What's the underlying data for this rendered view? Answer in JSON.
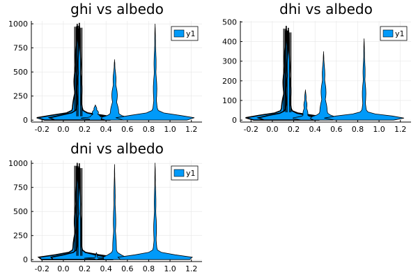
{
  "colors": {
    "series": "#009af9",
    "outline": "#000000",
    "grid": "#e6e6e6",
    "axis": "#000000"
  },
  "chart_data": [
    {
      "type": "violin",
      "title": "ghi vs albedo",
      "xlabel": "",
      "ylabel": "",
      "xlim": [
        -0.3,
        1.3
      ],
      "ylim": [
        -20,
        1030
      ],
      "xticks": [
        -0.2,
        0.0,
        0.2,
        0.4,
        0.6,
        0.8,
        1.0,
        1.2
      ],
      "xtick_labels": [
        "-0.2",
        "0.0",
        "0.2",
        "0.4",
        "0.6",
        "0.8",
        "1.0",
        "1.2"
      ],
      "yticks": [
        0,
        250,
        500,
        750,
        1000
      ],
      "ytick_labels": [
        "0",
        "250",
        "500",
        "750",
        "1000"
      ],
      "grid": true,
      "legend": "top-right",
      "series": [
        {
          "name": "y1",
          "violins": [
            {
              "x": 0.13,
              "ymin": 0,
              "ymax": 1000,
              "peak_y": 20,
              "base_half": 0.35,
              "mid_half": 0.05,
              "dark": true
            },
            {
              "x": 0.15,
              "ymin": 0,
              "ymax": 1010,
              "peak_y": 20,
              "base_half": 0.25,
              "mid_half": 0.035,
              "dark": true
            },
            {
              "x": 0.3,
              "ymin": 0,
              "ymax": 160,
              "peak_y": 20,
              "base_half": 0.1,
              "mid_half": 0.06,
              "dark": false
            },
            {
              "x": 0.48,
              "ymin": 0,
              "ymax": 630,
              "peak_y": 20,
              "base_half": 0.1,
              "mid_half": 0.045,
              "dark": false
            },
            {
              "x": 0.86,
              "ymin": 0,
              "ymax": 1000,
              "peak_y": 20,
              "base_half": 0.35,
              "mid_half": 0.025,
              "dark": false
            }
          ]
        }
      ]
    },
    {
      "type": "violin",
      "title": "dhi vs albedo",
      "xlabel": "",
      "ylabel": "",
      "xlim": [
        -0.3,
        1.3
      ],
      "ylim": [
        -10,
        505
      ],
      "xticks": [
        -0.2,
        0.0,
        0.2,
        0.4,
        0.6,
        0.8,
        1.0,
        1.2
      ],
      "xtick_labels": [
        "-0.2",
        "0.0",
        "0.2",
        "0.4",
        "0.6",
        "0.8",
        "1.0",
        "1.2"
      ],
      "yticks": [
        0,
        100,
        200,
        300,
        400,
        500
      ],
      "ytick_labels": [
        "0",
        "100",
        "200",
        "300",
        "400",
        "500"
      ],
      "grid": true,
      "legend": "top-right",
      "series": [
        {
          "name": "y1",
          "violins": [
            {
              "x": 0.13,
              "ymin": 0,
              "ymax": 480,
              "peak_y": 10,
              "base_half": 0.35,
              "mid_half": 0.05,
              "dark": true
            },
            {
              "x": 0.15,
              "ymin": 0,
              "ymax": 470,
              "peak_y": 10,
              "base_half": 0.25,
              "mid_half": 0.035,
              "dark": true
            },
            {
              "x": 0.31,
              "ymin": 0,
              "ymax": 155,
              "peak_y": 10,
              "base_half": 0.1,
              "mid_half": 0.03,
              "dark": false
            },
            {
              "x": 0.48,
              "ymin": 0,
              "ymax": 350,
              "peak_y": 10,
              "base_half": 0.1,
              "mid_half": 0.04,
              "dark": false
            },
            {
              "x": 0.86,
              "ymin": 0,
              "ymax": 415,
              "peak_y": 10,
              "base_half": 0.35,
              "mid_half": 0.025,
              "dark": false
            }
          ]
        }
      ]
    },
    {
      "type": "violin",
      "title": "dni vs albedo",
      "xlabel": "",
      "ylabel": "",
      "xlim": [
        -0.3,
        1.3
      ],
      "ylim": [
        -20,
        1030
      ],
      "xticks": [
        -0.2,
        0.0,
        0.2,
        0.4,
        0.6,
        0.8,
        1.0,
        1.2
      ],
      "xtick_labels": [
        "-0.2",
        "0.0",
        "0.2",
        "0.4",
        "0.6",
        "0.8",
        "1.0",
        "1.2"
      ],
      "yticks": [
        0,
        250,
        500,
        750,
        1000
      ],
      "ytick_labels": [
        "0",
        "250",
        "500",
        "750",
        "1000"
      ],
      "grid": true,
      "legend": "top-right",
      "series": [
        {
          "name": "y1",
          "violins": [
            {
              "x": 0.13,
              "ymin": 0,
              "ymax": 1005,
              "peak_y": 15,
              "base_half": 0.35,
              "mid_half": 0.045,
              "dark": true
            },
            {
              "x": 0.15,
              "ymin": 0,
              "ymax": 1000,
              "peak_y": 15,
              "base_half": 0.25,
              "mid_half": 0.03,
              "dark": true
            },
            {
              "x": 0.31,
              "ymin": 0,
              "ymax": 75,
              "peak_y": 15,
              "base_half": 0.1,
              "mid_half": 0.02,
              "dark": false
            },
            {
              "x": 0.48,
              "ymin": 0,
              "ymax": 990,
              "peak_y": 15,
              "base_half": 0.1,
              "mid_half": 0.02,
              "dark": false
            },
            {
              "x": 0.86,
              "ymin": 0,
              "ymax": 1005,
              "peak_y": 15,
              "base_half": 0.35,
              "mid_half": 0.02,
              "dark": false
            }
          ]
        }
      ]
    }
  ]
}
